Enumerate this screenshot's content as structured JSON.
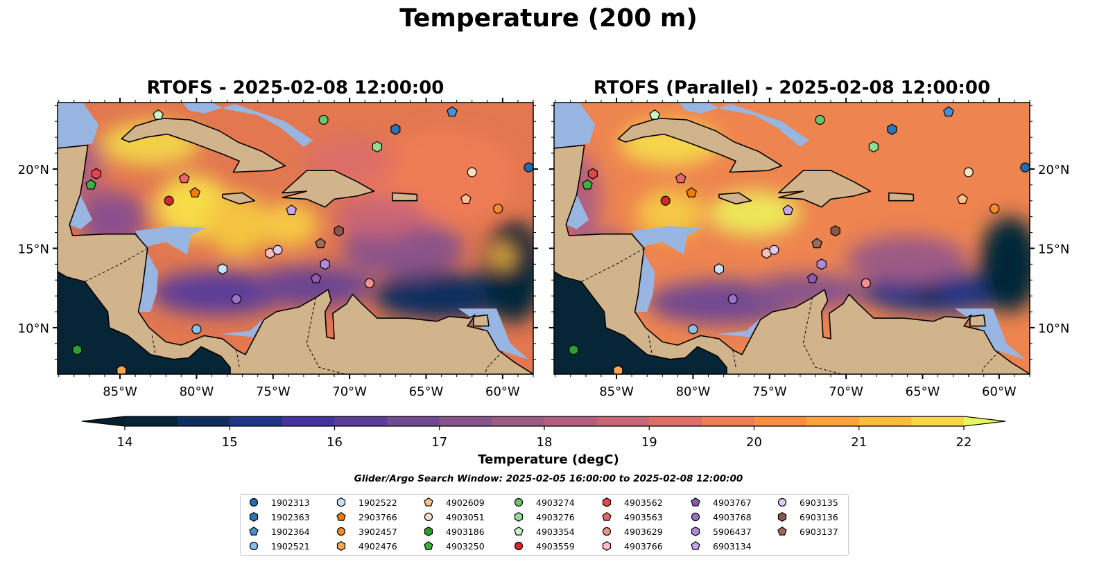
{
  "title": "Temperature (200 m)",
  "panels": [
    {
      "title": "RTOFS - 2025-02-08 12:00:00"
    },
    {
      "title": "RTOFS (Parallel) - 2025-02-08 12:00:00"
    }
  ],
  "colorbar": {
    "label": "Temperature (degC)",
    "min": 14,
    "max": 22,
    "step": 0.5,
    "ticks": [
      "14",
      "15",
      "16",
      "17",
      "18",
      "19",
      "20",
      "21",
      "22"
    ],
    "colors": [
      "#062637",
      "#0e2f5f",
      "#213584",
      "#43349d",
      "#5b3d98",
      "#714a91",
      "#86538b",
      "#9c5a85",
      "#b25f7f",
      "#c96576",
      "#dd6e67",
      "#ee7d55",
      "#f98e43",
      "#fca33e",
      "#fbbc3f",
      "#f6d74b"
    ],
    "under_color": "#04202e",
    "over_color": "#e8f85c"
  },
  "search_window": "Glider/Argo Search Window: 2025-02-05 16:00:00 to 2025-02-08 12:00:00",
  "chart_data": {
    "type": "scatter",
    "title": "Temperature (200 m)",
    "extent": {
      "lon": [
        -89.08,
        -58.0
      ],
      "lat": [
        7.07,
        24.19
      ]
    },
    "xticks": [
      {
        "value": -85,
        "label": "85°W"
      },
      {
        "value": -80,
        "label": "80°W"
      },
      {
        "value": -75,
        "label": "75°W"
      },
      {
        "value": -70,
        "label": "70°W"
      },
      {
        "value": -65,
        "label": "65°W"
      },
      {
        "value": -60,
        "label": "60°W"
      }
    ],
    "yticks": [
      {
        "value": 10,
        "label": "10°N"
      },
      {
        "value": 15,
        "label": "15°N"
      },
      {
        "value": 20,
        "label": "20°N"
      }
    ],
    "floats": [
      {
        "id": "1902313",
        "marker": "circle",
        "color": "#1f6fb0",
        "lon": -58.3,
        "lat": 20.1
      },
      {
        "id": "1902363",
        "marker": "hexagon",
        "color": "#2a75b8",
        "lon": -67.0,
        "lat": 22.5
      },
      {
        "id": "1902364",
        "marker": "pentagon",
        "color": "#4a8fd0",
        "lon": -63.3,
        "lat": 23.6
      },
      {
        "id": "1902521",
        "marker": "circle",
        "color": "#8bbde8",
        "lon": -80.0,
        "lat": 9.9
      },
      {
        "id": "1902522",
        "marker": "hexagon",
        "color": "#c6e4f8",
        "lon": -78.3,
        "lat": 13.7
      },
      {
        "id": "2903766",
        "marker": "pentagon",
        "color": "#f57a00",
        "lon": -80.1,
        "lat": 18.5
      },
      {
        "id": "3902457",
        "marker": "circle",
        "color": "#f88c2a",
        "lon": -60.3,
        "lat": 17.5
      },
      {
        "id": "4902476",
        "marker": "hexagon",
        "color": "#fba44f",
        "lon": -84.9,
        "lat": 7.3
      },
      {
        "id": "4902609",
        "marker": "pentagon",
        "color": "#fdc28f",
        "lon": -62.4,
        "lat": 18.1
      },
      {
        "id": "4903051",
        "marker": "circle",
        "color": "#fde0c4",
        "lon": -62.0,
        "lat": 19.8
      },
      {
        "id": "4903186",
        "marker": "hexagon",
        "color": "#2e9e2e",
        "lon": -87.8,
        "lat": 8.6
      },
      {
        "id": "4903250",
        "marker": "pentagon",
        "color": "#3fb03f",
        "lon": -86.9,
        "lat": 19.0
      },
      {
        "id": "4903274",
        "marker": "circle",
        "color": "#6cc36c",
        "lon": -71.7,
        "lat": 23.1
      },
      {
        "id": "4903276",
        "marker": "hexagon",
        "color": "#94db94",
        "lon": -68.2,
        "lat": 21.4
      },
      {
        "id": "4903354",
        "marker": "pentagon",
        "color": "#c8f5c8",
        "lon": -82.5,
        "lat": 23.4
      },
      {
        "id": "4903559",
        "marker": "circle",
        "color": "#d62728",
        "lon": -81.8,
        "lat": 18.0
      },
      {
        "id": "4903562",
        "marker": "hexagon",
        "color": "#e04747",
        "lon": -86.55,
        "lat": 19.7
      },
      {
        "id": "4903563",
        "marker": "pentagon",
        "color": "#e86868",
        "lon": -80.8,
        "lat": 19.4
      },
      {
        "id": "4903629",
        "marker": "circle",
        "color": "#f29090",
        "lon": -68.7,
        "lat": 12.8
      },
      {
        "id": "4903766",
        "marker": "hexagon",
        "color": "#f9bdbd",
        "lon": -75.2,
        "lat": 14.7
      },
      {
        "id": "4903767",
        "marker": "pentagon",
        "color": "#8c5bb0",
        "lon": -72.2,
        "lat": 13.1
      },
      {
        "id": "4903768",
        "marker": "circle",
        "color": "#9a72c8",
        "lon": -77.4,
        "lat": 11.8
      },
      {
        "id": "5906437",
        "marker": "hexagon",
        "color": "#b08ad8",
        "lon": -71.6,
        "lat": 14.0
      },
      {
        "id": "6903134",
        "marker": "pentagon",
        "color": "#c6a6ec",
        "lon": -73.8,
        "lat": 17.4
      },
      {
        "id": "6903135",
        "marker": "circle",
        "color": "#e0c8f6",
        "lon": -74.7,
        "lat": 14.9
      },
      {
        "id": "6903136",
        "marker": "hexagon",
        "color": "#8c564b",
        "lon": -70.7,
        "lat": 16.1
      },
      {
        "id": "6903137",
        "marker": "pentagon",
        "color": "#9c6b5a",
        "lon": -71.9,
        "lat": 15.3
      }
    ]
  }
}
